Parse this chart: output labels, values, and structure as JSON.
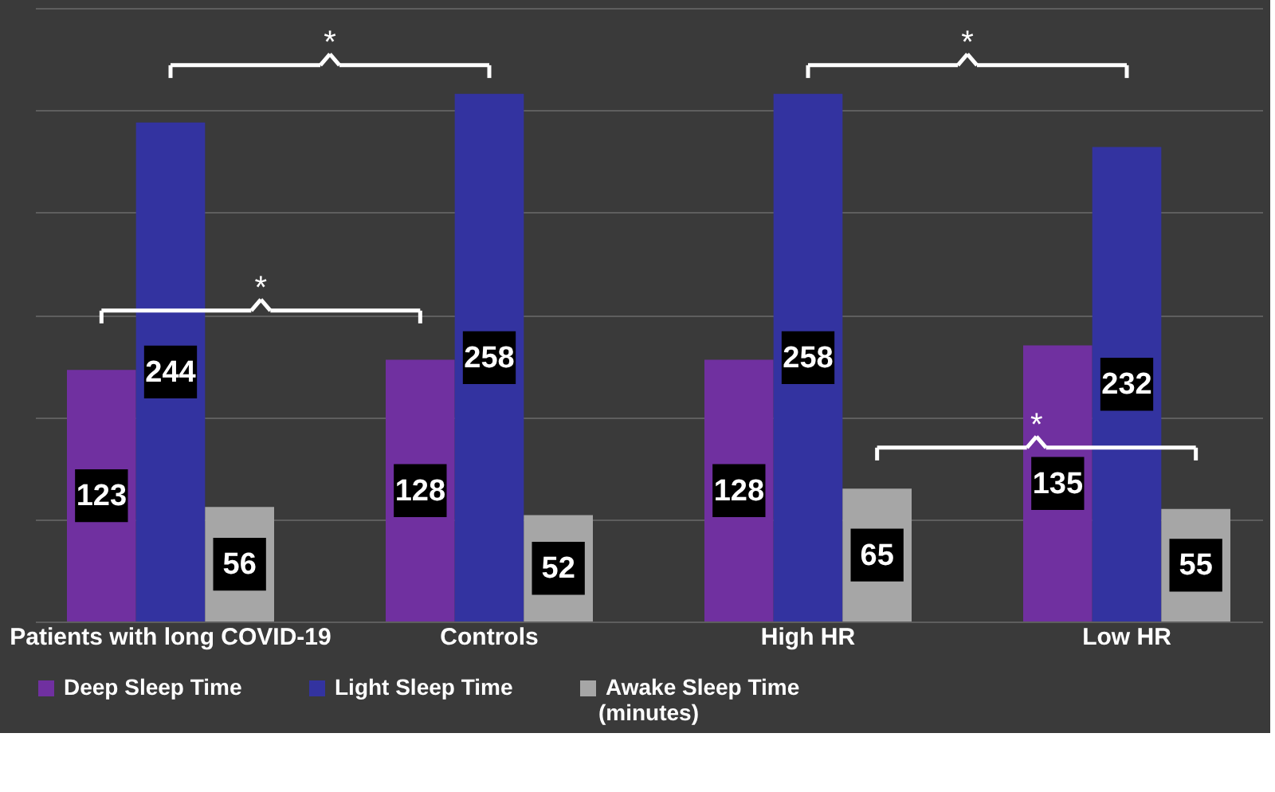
{
  "chart_data": {
    "type": "bar",
    "categories": [
      "Patients with long COVID-19",
      "Controls",
      "High HR",
      "Low HR"
    ],
    "series": [
      {
        "name": "Deep Sleep Time",
        "color": "#7030a0",
        "values": [
          123,
          128,
          128,
          135
        ]
      },
      {
        "name": "Light Sleep Time",
        "color": "#3333a0",
        "values": [
          244,
          258,
          258,
          232
        ]
      },
      {
        "name": "Awake Sleep Time",
        "color": "#a6a6a6",
        "values": [
          56,
          52,
          65,
          55
        ]
      }
    ],
    "ylim": [
      0,
      300
    ],
    "yticks": [
      0,
      50,
      100,
      150,
      200,
      250,
      300
    ],
    "tick_labels": "x",
    "grid": "y",
    "legend": "bottom",
    "data_labels": true,
    "annotations": [
      "*",
      "*",
      "*",
      "*",
      "(minutes)"
    ]
  }
}
